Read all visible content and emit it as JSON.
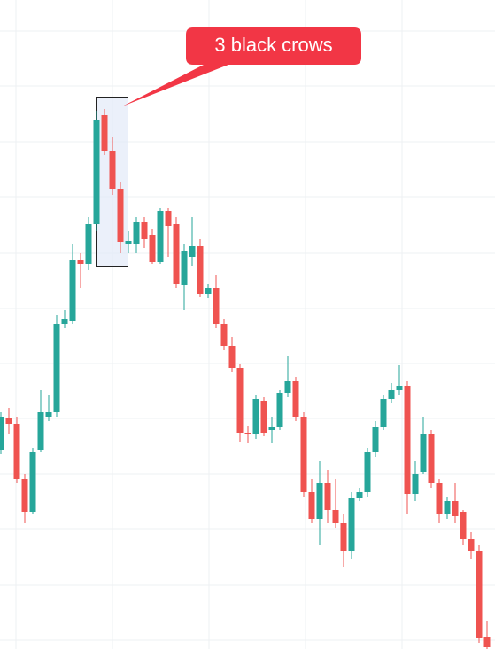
{
  "chart_data": {
    "type": "candlestick",
    "annotation": "3 black crows",
    "up_color": "#26a69a",
    "down_color": "#ef5350",
    "ylim": [
      0,
      732
    ],
    "open": [
      224,
      260,
      254,
      192,
      154,
      224,
      262,
      267,
      367,
      370,
      439,
      434,
      479,
      602,
      562,
      519,
      457,
      457,
      482,
      467,
      437,
      494,
      479,
      410,
      442,
      454,
      400,
      407,
      367,
      342,
      317,
      244,
      242,
      280,
      247,
      250,
      289,
      302,
      262,
      177,
      147,
      187,
      157,
      142,
      110,
      170,
      177,
      222,
      250,
      282,
      292,
      297,
      175,
      200,
      242,
      187,
      152,
      167,
      154,
      124,
      110,
      14
    ],
    "close": [
      262,
      254,
      192,
      154,
      222,
      267,
      267,
      367,
      372,
      439,
      434,
      479,
      597,
      562,
      519,
      459,
      460,
      482,
      462,
      437,
      494,
      477,
      412,
      449,
      454,
      400,
      407,
      367,
      342,
      317,
      244,
      242,
      282,
      244,
      250,
      289,
      302,
      262,
      177,
      147,
      187,
      157,
      142,
      110,
      170,
      177,
      222,
      250,
      282,
      292,
      297,
      175,
      197,
      242,
      187,
      152,
      167,
      150,
      124,
      110,
      12,
      2
    ],
    "high": [
      267,
      272,
      262,
      197,
      227,
      292,
      287,
      377,
      382,
      457,
      447,
      487,
      607,
      609,
      577,
      527,
      472,
      487,
      487,
      474,
      497,
      497,
      487,
      457,
      487,
      462,
      412,
      422,
      372,
      352,
      322,
      252,
      287,
      284,
      262,
      292,
      330,
      307,
      267,
      192,
      212,
      202,
      192,
      152,
      177,
      182,
      227,
      257,
      287,
      300,
      320,
      302,
      212,
      262,
      247,
      192,
      172,
      187,
      157,
      132,
      117,
      32
    ],
    "low": [
      220,
      242,
      187,
      142,
      152,
      222,
      257,
      262,
      362,
      367,
      407,
      427,
      472,
      557,
      512,
      447,
      447,
      447,
      452,
      434,
      434,
      442,
      407,
      382,
      432,
      397,
      396,
      362,
      337,
      312,
      234,
      232,
      237,
      240,
      232,
      247,
      284,
      257,
      172,
      142,
      117,
      142,
      137,
      92,
      102,
      167,
      172,
      217,
      247,
      277,
      287,
      152,
      167,
      197,
      182,
      142,
      147,
      142,
      117,
      102,
      7,
      0
    ]
  }
}
